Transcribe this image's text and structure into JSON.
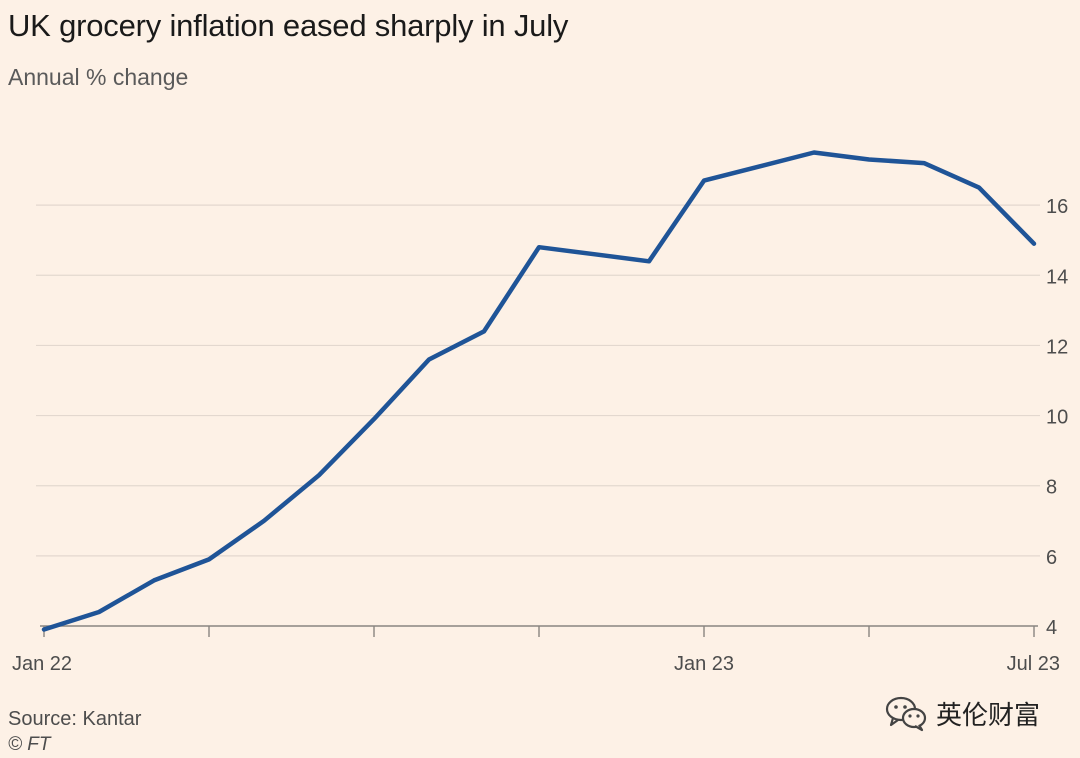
{
  "title": "UK grocery inflation eased sharply in July",
  "subtitle": "Annual % change",
  "source": "Source: Kantar",
  "copyright": "© FT",
  "watermark": {
    "icon": "wechat-icon",
    "text": "英伦财富"
  },
  "colors": {
    "background": "#fdf1e6",
    "line": "#1f5497",
    "grid": "#e3d8cf",
    "axis": "#4d4d4d"
  },
  "chart_data": {
    "type": "line",
    "title": "UK grocery inflation eased sharply in July",
    "subtitle": "Annual % change",
    "x": [
      "2022-01",
      "2022-02",
      "2022-03",
      "2022-04",
      "2022-05",
      "2022-06",
      "2022-07",
      "2022-08",
      "2022-09",
      "2022-10",
      "2022-11",
      "2022-12",
      "2023-01",
      "2023-02",
      "2023-03",
      "2023-04",
      "2023-05",
      "2023-06",
      "2023-07"
    ],
    "series": [
      {
        "values": [
          3.9,
          4.4,
          5.3,
          5.9,
          7.0,
          8.3,
          9.9,
          11.6,
          12.4,
          14.8,
          14.6,
          14.4,
          16.7,
          17.1,
          17.5,
          17.3,
          17.2,
          16.5,
          14.9
        ]
      }
    ],
    "x_tick_labels": [
      "Jan 22",
      "Jan 23",
      "Jul 23"
    ],
    "y_ticks": [
      4,
      6,
      8,
      10,
      12,
      14,
      16
    ],
    "ylim": [
      4,
      18
    ],
    "y_axis_side": "right",
    "grid": true,
    "legend": "none"
  }
}
